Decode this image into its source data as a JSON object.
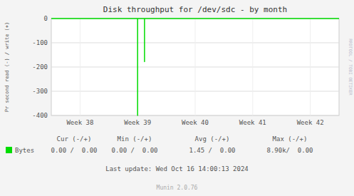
{
  "chart_data": {
    "type": "line",
    "title": "Disk throughput for /dev/sdc - by month",
    "y_label": "Pr second read (-) / write (+)",
    "x": [
      -0.5,
      1.0,
      1.0,
      1.0,
      1.12,
      1.12,
      1.12,
      4.5
    ],
    "series": [
      {
        "name": "Bytes",
        "color": "#00dd00",
        "values": [
          0,
          0,
          -400,
          0,
          0,
          -178,
          0,
          0
        ]
      }
    ],
    "xlim": [
      -0.5,
      4.5
    ],
    "xticks": [
      {
        "value": 0,
        "label": "Week 38"
      },
      {
        "value": 1,
        "label": "Week 39"
      },
      {
        "value": 2,
        "label": "Week 40"
      },
      {
        "value": 3,
        "label": "Week 41"
      },
      {
        "value": 4,
        "label": "Week 42"
      }
    ],
    "ylim": [
      -400,
      0
    ],
    "yticks": [
      0,
      -100,
      -200,
      -300,
      -400
    ],
    "grid": true,
    "legend": "bottom",
    "stats": {
      "columns": [
        "Cur (-/+)",
        "Min (-/+)",
        "Avg (-/+)",
        "Max (-/+)"
      ],
      "values": [
        "0.00 /  0.00",
        "0.00 /  0.00",
        "1.45 /  0.00",
        "8.90k/  0.00"
      ]
    },
    "annotations": {
      "watermark": "RRDTOOL / TOBI OETIKER",
      "footer": [
        "Last update: Wed Oct 16 14:00:13 2024",
        "Munin 2.0.76"
      ]
    }
  }
}
